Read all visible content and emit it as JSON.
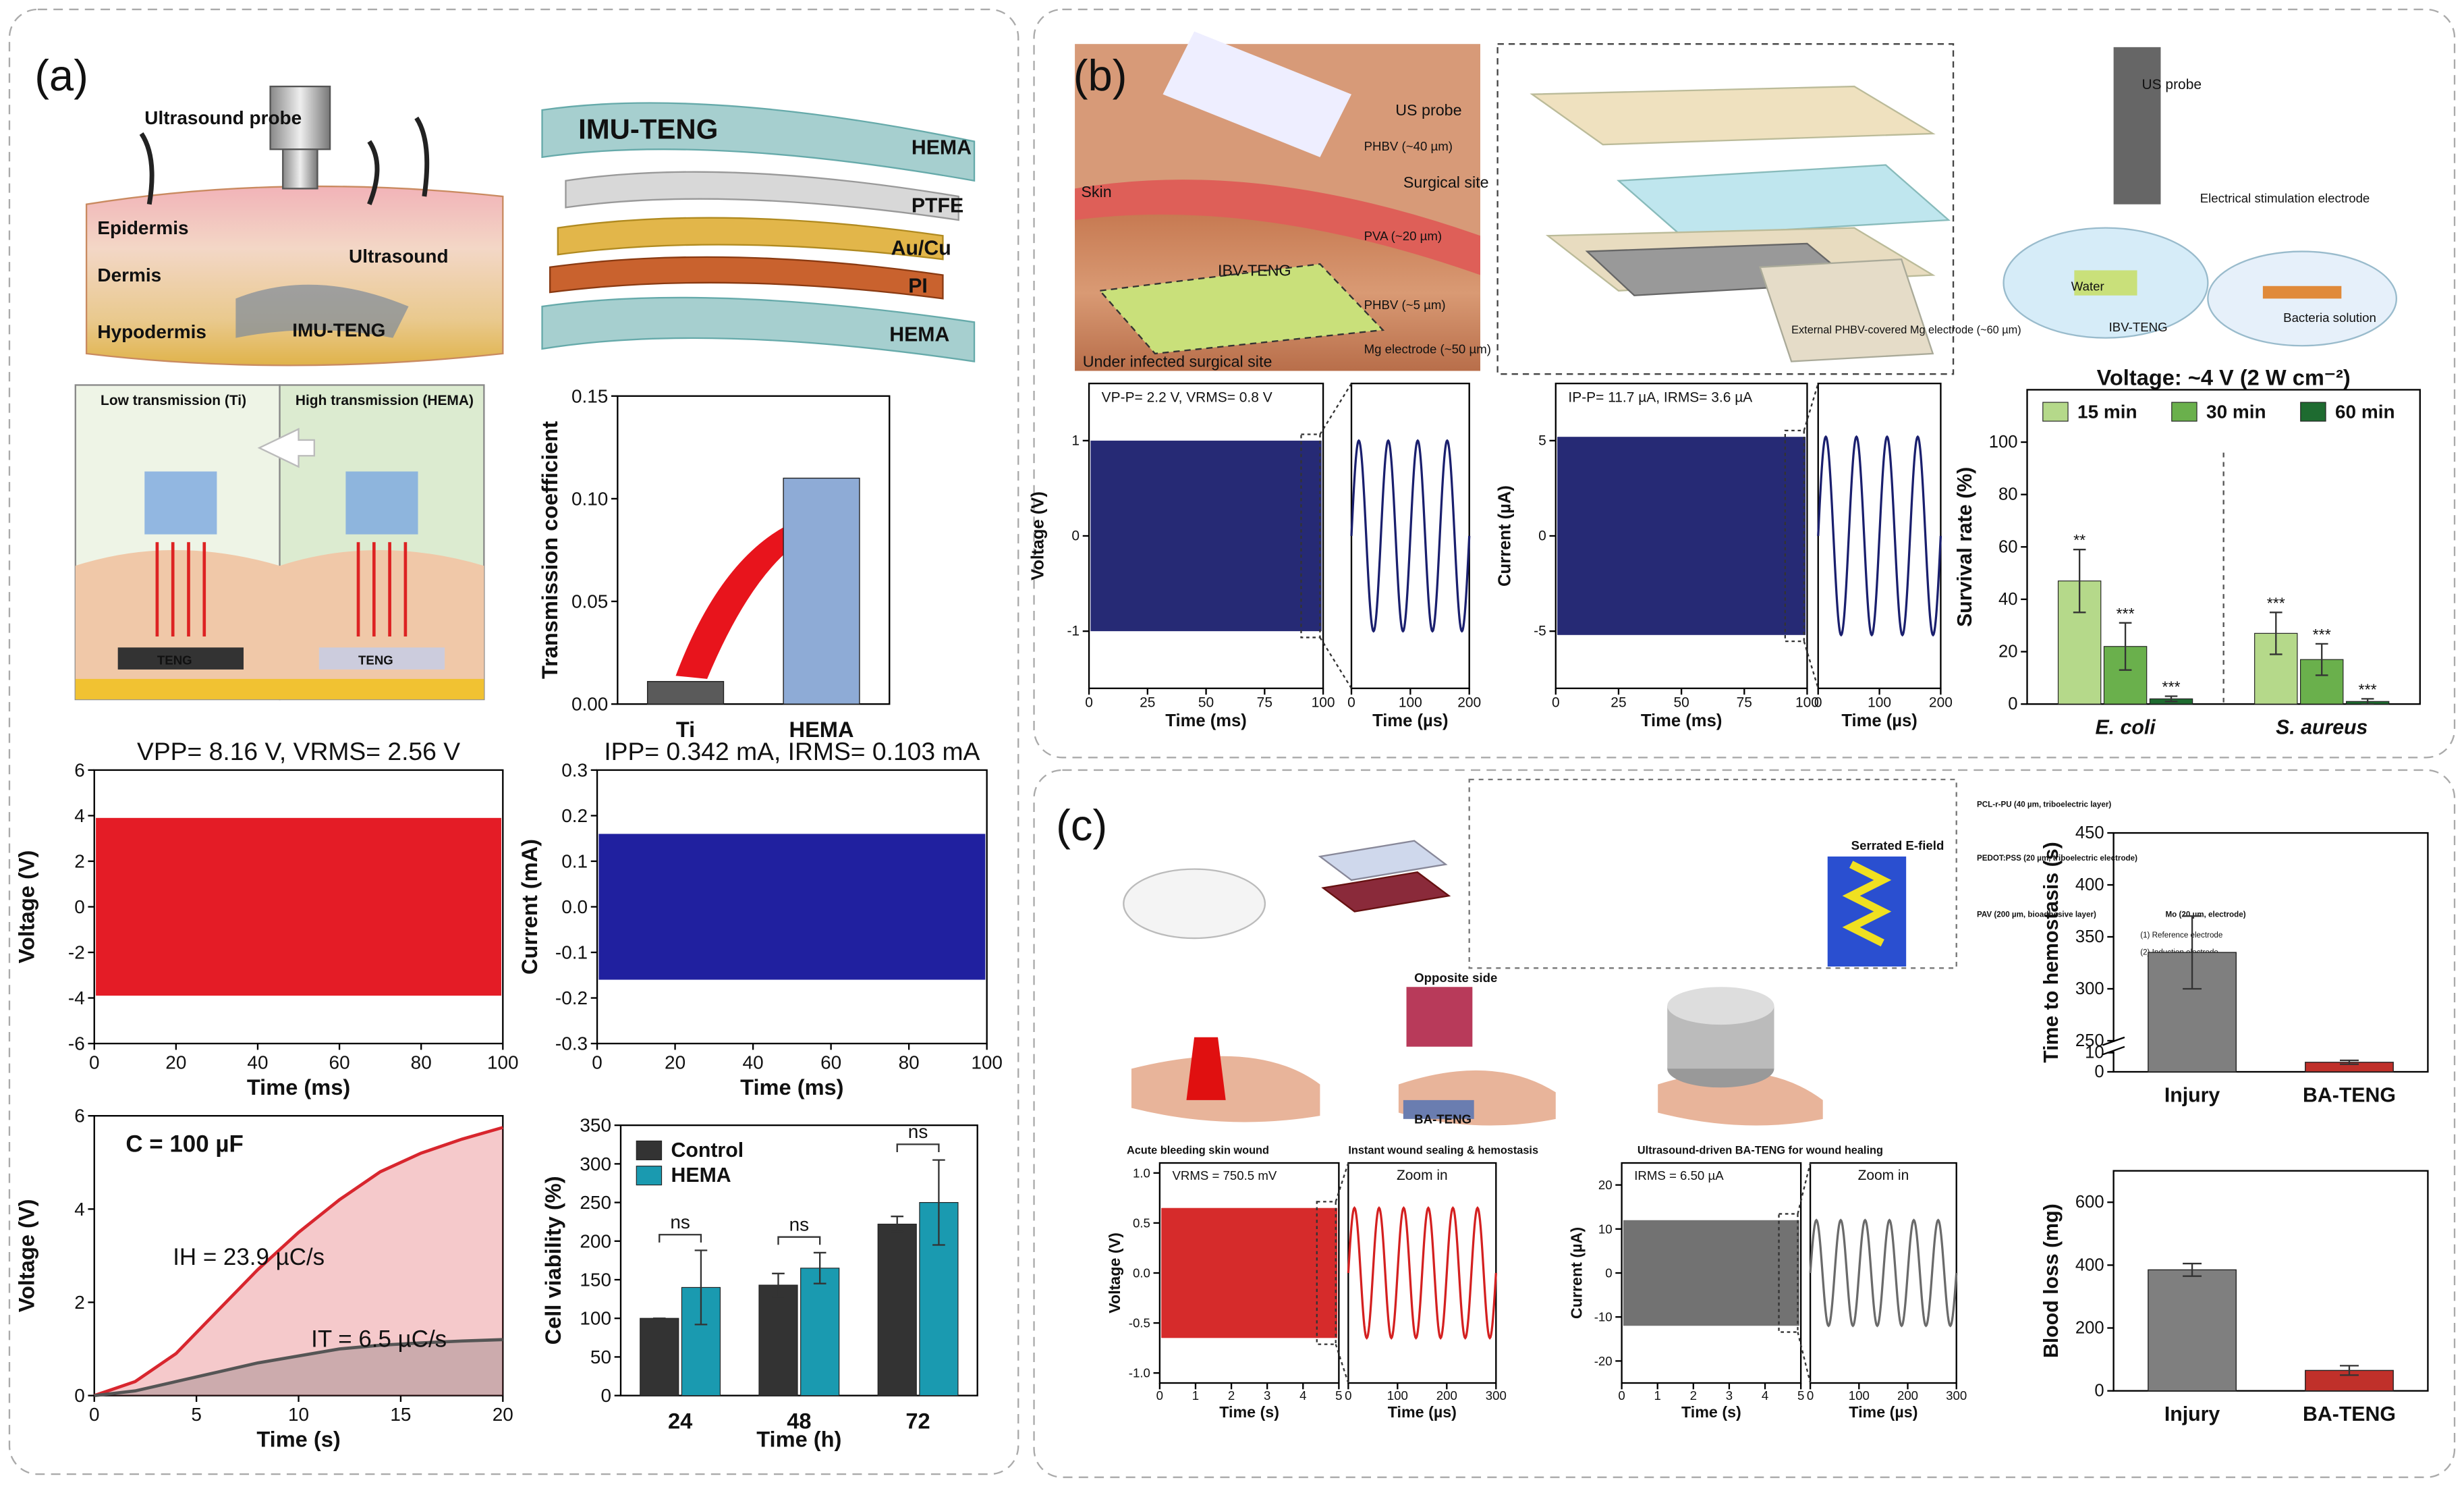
{
  "diagram": {
    "panel_labels": [
      "(a)",
      "(b)",
      "(c)"
    ],
    "labels": [
      "Ultrasound probe",
      "Epidermis",
      "Ultrasound",
      "Dermis",
      "Hypodermis",
      "IMU-TENG",
      "IMU-TENG",
      "HEMA",
      "PTFE",
      "Au/Cu",
      "PI",
      "HEMA",
      "Low transmission (Ti)",
      "High transmission (HEMA)",
      "TENG",
      "TENG",
      "US probe",
      "Skin",
      "Surgical site",
      "IBV-TENG",
      "Under infected surgical site",
      "PHBV (~40 µm)",
      "PVA (~20 µm)",
      "PHBV (~5 µm)",
      "Mg electrode (~50 µm)",
      "External PHBV-covered Mg electrode (~60 µm)",
      "US probe",
      "Electrical stimulation electrode",
      "Water",
      "IBV-TENG",
      "Bacteria solution",
      "Opposite side",
      "Serrated E-field",
      "BA-TENG",
      "Acute bleeding skin wound",
      "Instant wound sealing & hemostasis",
      "Ultrasound-driven BA-TENG for wound healing",
      "PCL-r-PU (40 µm, triboelectric layer)",
      "PEDOT:PSS (20 µm, triboelectric electrode)",
      "PAV (200 µm, bioadhesive layer)",
      "Mo (20 µm, electrode)",
      "(1) Reference electrode",
      "(2) Induction electrode"
    ]
  },
  "chart_data": [
    {
      "type": "bar",
      "ylabel": "Transmission coefficient",
      "categories": [
        "Ti",
        "HEMA"
      ],
      "values": [
        0.011,
        0.11
      ],
      "colors": [
        "#5a5a5a",
        "#8eabd6"
      ],
      "ylim": [
        0,
        0.15
      ],
      "yticks": [
        {
          "value": 0,
          "label": "0.00"
        },
        0.05,
        {
          "value": 0.1,
          "label": "0.10"
        },
        0.15
      ]
    },
    {
      "type": "signal",
      "title": "VPP= 8.16 V, VRMS= 2.56 V",
      "xlabel": "Time (ms)",
      "ylabel": "Voltage (V)",
      "xlim": [
        0,
        100
      ],
      "xticks": [
        0,
        20,
        40,
        60,
        80,
        100
      ],
      "ylim": [
        -6,
        6
      ],
      "yticks": [
        -6,
        -4,
        -2,
        0,
        2,
        4,
        6
      ],
      "amplitude": 3.9,
      "color": "#e3101a",
      "axis_label_color": "#e3101a"
    },
    {
      "type": "signal",
      "title": "IPP= 0.342 mA, IRMS= 0.103 mA",
      "xlabel": "Time (ms)",
      "ylabel": "Current (mA)",
      "xlim": [
        0,
        100
      ],
      "xticks": [
        0,
        20,
        40,
        60,
        80,
        100
      ],
      "ylim": [
        -0.3,
        0.3
      ],
      "yticks": [
        -0.3,
        -0.2,
        -0.1,
        {
          "value": 0,
          "label": "0.0"
        },
        0.1,
        0.2,
        0.3
      ],
      "amplitude": 0.16,
      "color": "#14149a",
      "axis_label_color": "#2a3ad0"
    },
    {
      "type": "line",
      "xlabel": "Time (s)",
      "ylabel": "Voltage (V)",
      "xlim": [
        0,
        20
      ],
      "xticks": [
        0,
        5,
        10,
        15,
        20
      ],
      "ylim": [
        0,
        6
      ],
      "yticks": [
        0,
        2,
        4,
        6
      ],
      "x": [
        0,
        2,
        4,
        6,
        8,
        10,
        12,
        14,
        16,
        18,
        20
      ],
      "series": [
        {
          "color": "#d8262e",
          "values": [
            0,
            0.3,
            0.9,
            1.8,
            2.7,
            3.5,
            4.2,
            4.8,
            5.2,
            5.5,
            5.75
          ]
        },
        {
          "color": "#555555",
          "values": [
            0,
            0.1,
            0.3,
            0.5,
            0.7,
            0.85,
            1.0,
            1.08,
            1.13,
            1.17,
            1.2
          ]
        }
      ],
      "annotations": [
        "C = 100 µF",
        "IH = 23.9 µC/s",
        "IT = 6.5 µC/s"
      ]
    },
    {
      "type": "grouped",
      "xlabel": "Time (h)",
      "ylabel": "Cell viability (%)",
      "categories": [
        "24",
        "48",
        "72"
      ],
      "ylim": [
        0,
        350
      ],
      "yticks": [
        0,
        50,
        100,
        150,
        200,
        250,
        300,
        350
      ],
      "series": [
        {
          "name": "Control",
          "color": "#333333",
          "values": [
            100,
            143,
            222
          ],
          "errors": [
            0,
            15,
            10
          ]
        },
        {
          "name": "HEMA",
          "color": "#1a9ab0",
          "values": [
            140,
            165,
            250
          ],
          "errors": [
            48,
            20,
            55
          ]
        }
      ],
      "significance": [
        "ns",
        "ns",
        "ns"
      ]
    },
    {
      "type": "signal",
      "title": "VP-P= 2.2 V, VRMS= 0.8 V",
      "xlabel": "Time (ms)",
      "ylabel": "Voltage (V)",
      "xlim": [
        0,
        100
      ],
      "xticks": [
        0,
        25,
        50,
        75,
        100
      ],
      "ylim": [
        -1.6,
        1.6
      ],
      "yticks": [
        -1,
        0,
        1
      ],
      "amplitude": 1.0,
      "color": "#1a1f6e",
      "zoom": {
        "xlabel": "Time (µs)",
        "xlim": [
          0,
          200
        ],
        "xticks": [
          0,
          100,
          200
        ],
        "period": 50
      }
    },
    {
      "type": "signal",
      "title": "IP-P= 11.7 µA, IRMS= 3.6 µA",
      "xlabel": "Time (ms)",
      "ylabel": "Current (µA)",
      "xlim": [
        0,
        100
      ],
      "xticks": [
        0,
        25,
        50,
        75,
        100
      ],
      "ylim": [
        -8,
        8
      ],
      "yticks": [
        -5,
        0,
        5
      ],
      "amplitude": 5.2,
      "color": "#1a1f6e",
      "zoom": {
        "xlabel": "Time (µs)",
        "xlim": [
          0,
          200
        ],
        "xticks": [
          0,
          100,
          200
        ],
        "period": 50
      }
    },
    {
      "type": "grouped",
      "title": "Voltage: ~4 V (2 W cm⁻²)",
      "ylabel": "Survival rate (%)",
      "categories": [
        "E. coli",
        "S. aureus"
      ],
      "ylim": [
        0,
        120
      ],
      "yticks": [
        0,
        20,
        40,
        60,
        80,
        100
      ],
      "series": [
        {
          "name": "15 min",
          "color": "#b5d98a",
          "values": [
            47,
            27
          ],
          "errors": [
            12,
            8
          ],
          "significance": [
            "**",
            "***"
          ]
        },
        {
          "name": "30 min",
          "color": "#6ab04c",
          "values": [
            22,
            17
          ],
          "errors": [
            9,
            6
          ],
          "significance": [
            "***",
            "***"
          ]
        },
        {
          "name": "60 min",
          "color": "#1e6b30",
          "values": [
            2,
            1
          ],
          "errors": [
            1,
            1
          ],
          "significance": [
            "***",
            "***"
          ]
        }
      ]
    },
    {
      "type": "signal",
      "title": "VRMS = 750.5 mV",
      "xlabel": "Time (s)",
      "ylabel": "Voltage (V)",
      "xlim": [
        0,
        5
      ],
      "xticks": [
        0,
        1,
        2,
        3,
        4,
        5
      ],
      "ylim": [
        -1.1,
        1.1
      ],
      "yticks": [
        {
          "value": -1,
          "label": "-1.0"
        },
        -0.5,
        {
          "value": 0,
          "label": "0.0"
        },
        0.5,
        {
          "value": 1,
          "label": "1.0"
        }
      ],
      "amplitude": 0.65,
      "color": "#d42020",
      "zoom": {
        "title": "Zoom in",
        "xlabel": "Time (µs)",
        "xlim": [
          0,
          300
        ],
        "xticks": [
          0,
          100,
          200,
          300
        ],
        "period": 50
      }
    },
    {
      "type": "signal",
      "title": "IRMS = 6.50 µA",
      "xlabel": "Time (s)",
      "ylabel": "Current (µA)",
      "xlim": [
        0,
        5
      ],
      "xticks": [
        0,
        1,
        2,
        3,
        4,
        5
      ],
      "ylim": [
        -25,
        25
      ],
      "yticks": [
        -20,
        -10,
        0,
        10,
        20
      ],
      "amplitude": 12,
      "color": "#6a6a6a",
      "zoom": {
        "title": "Zoom in",
        "xlabel": "Time (µs)",
        "xlim": [
          0,
          300
        ],
        "xticks": [
          0,
          100,
          200,
          300
        ],
        "period": 50
      }
    },
    {
      "type": "bar",
      "ylabel": "Time to hemostasis (s)",
      "categories": [
        "Injury",
        "BA-TENG"
      ],
      "values": [
        335,
        5
      ],
      "errors": [
        35,
        1
      ],
      "colors": [
        "#7f7f7f",
        "#c0302a"
      ],
      "ylim": [
        0,
        450
      ],
      "ybreak": [
        10,
        250
      ],
      "yticks": [
        0,
        10,
        250,
        300,
        350,
        400,
        450
      ]
    },
    {
      "type": "bar",
      "ylabel": "Blood loss (mg)",
      "categories": [
        "Injury",
        "BA-TENG"
      ],
      "values": [
        385,
        65
      ],
      "errors": [
        20,
        15
      ],
      "colors": [
        "#7f7f7f",
        "#c0302a"
      ],
      "ylim": [
        0,
        700
      ],
      "yticks": [
        0,
        200,
        400,
        600
      ]
    }
  ]
}
